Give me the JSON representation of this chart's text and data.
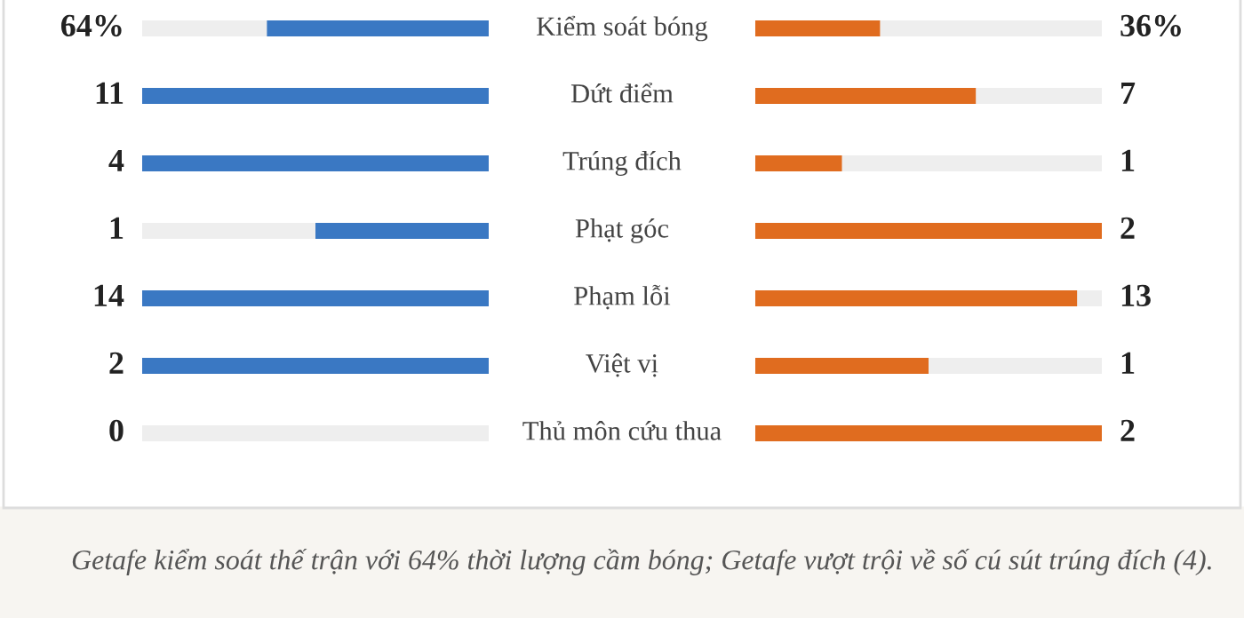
{
  "chart_data": {
    "type": "other",
    "categories": [
      "Kiểm soát bóng",
      "Dứt điểm",
      "Trúng đích",
      "Phạt góc",
      "Phạm lỗi",
      "Việt vị",
      "Thủ môn cứu thua"
    ],
    "series": [
      {
        "color": "#3a78c3",
        "values": [
          64,
          11,
          4,
          1,
          14,
          2,
          0
        ],
        "value_labels": [
          "64%",
          "11",
          "4",
          "1",
          "14",
          "2",
          "0"
        ]
      },
      {
        "color": "#e06c1f",
        "values": [
          36,
          7,
          1,
          2,
          13,
          1,
          2
        ],
        "value_labels": [
          "36%",
          "7",
          "1",
          "2",
          "13",
          "1",
          "2"
        ]
      }
    ],
    "annotations": [
      "Getafe kiểm soát thế trận với 64% thời lượng cầm bóng; Getafe vượt trội về số cú sút trúng đích (4)."
    ]
  }
}
